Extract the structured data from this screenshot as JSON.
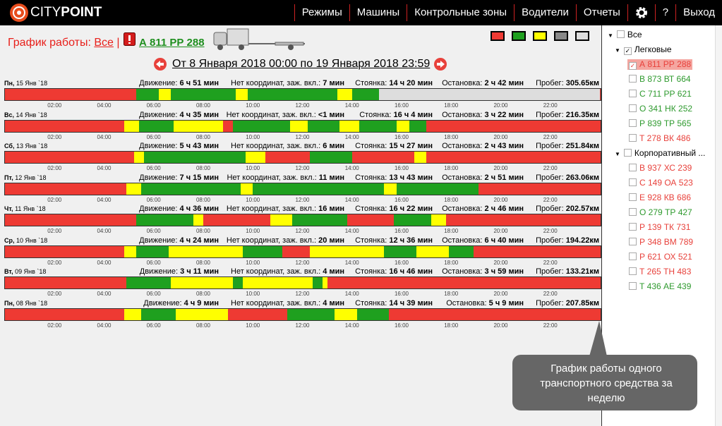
{
  "header": {
    "logo": "CITY",
    "logo_bold": "POINT",
    "menu": [
      "Режимы",
      "Машины",
      "Контрольные зоны",
      "Водители",
      "Отчеты",
      "?",
      "Выход"
    ]
  },
  "schedule": {
    "label": "График работы:",
    "filter": "Все",
    "separator": "|",
    "vehicle": "А 811 РР 288",
    "period": "От 8 Января 2018 00:00 по 19 Января 2018 23:59",
    "legend_colors": [
      "#ee3a33",
      "#1fa01f",
      "#ffff00",
      "#888888",
      "#dddddd"
    ],
    "hour_ticks": [
      {
        "value": 2,
        "label": "02:00"
      },
      {
        "value": 4,
        "label": "04:00"
      },
      {
        "value": 6,
        "label": "06:00"
      },
      {
        "value": 8,
        "label": "08:00"
      },
      {
        "value": 10,
        "label": "10:00"
      },
      {
        "value": 12,
        "label": "12:00"
      },
      {
        "value": 14,
        "label": "14:00"
      },
      {
        "value": 16,
        "label": "16:00"
      },
      {
        "value": 18,
        "label": "18:00"
      },
      {
        "value": 20,
        "label": "20:00"
      },
      {
        "value": 22,
        "label": "22:00"
      }
    ],
    "stat_labels": [
      "Движение:",
      "Нет координат, заж. вкл.:",
      "Стоянка:",
      "Остановка:",
      "Пробег:"
    ],
    "days": [
      {
        "weekday": "Пн,",
        "date": "15 Янв `18",
        "stats": [
          "6 ч 51 мин",
          "7 мин",
          "14 ч 20 мин",
          "2 ч 42 мин",
          "305.65км"
        ],
        "segments": [
          [
            0,
            0,
            5.3
          ],
          [
            1,
            5.3,
            6.2
          ],
          [
            2,
            6.2,
            6.7
          ],
          [
            1,
            6.7,
            9.3
          ],
          [
            2,
            9.3,
            9.8
          ],
          [
            1,
            9.8,
            13.4
          ],
          [
            2,
            13.4,
            14
          ],
          [
            1,
            14,
            15.1
          ],
          [
            4,
            15.1,
            24
          ]
        ]
      },
      {
        "weekday": "Вс,",
        "date": "14 Янв `18",
        "stats": [
          "4 ч 35 мин",
          "<1 мин",
          "16 ч 4 мин",
          "3 ч 22 мин",
          "216.35км"
        ],
        "segments": [
          [
            0,
            0,
            4.8
          ],
          [
            2,
            4.8,
            5.4
          ],
          [
            1,
            5.4,
            6.8
          ],
          [
            2,
            6.8,
            8.8
          ],
          [
            0,
            8.8,
            9.2
          ],
          [
            1,
            9.2,
            11.5
          ],
          [
            2,
            11.5,
            12.2
          ],
          [
            1,
            12.2,
            13.5
          ],
          [
            2,
            13.5,
            14.3
          ],
          [
            1,
            14.3,
            15.8
          ],
          [
            2,
            15.8,
            16.3
          ],
          [
            1,
            16.3,
            17
          ],
          [
            0,
            17,
            24
          ]
        ]
      },
      {
        "weekday": "Сб,",
        "date": "13 Янв `18",
        "stats": [
          "5 ч 43 мин",
          "6 мин",
          "15 ч 27 мин",
          "2 ч 43 мин",
          "251.84км"
        ],
        "segments": [
          [
            0,
            0,
            5.2
          ],
          [
            2,
            5.2,
            5.6
          ],
          [
            1,
            5.6,
            9.7
          ],
          [
            2,
            9.7,
            10.5
          ],
          [
            0,
            10.5,
            12.3
          ],
          [
            1,
            12.3,
            14
          ],
          [
            0,
            14,
            16.5
          ],
          [
            2,
            16.5,
            17
          ],
          [
            0,
            17,
            24
          ]
        ]
      },
      {
        "weekday": "Пт,",
        "date": "12 Янв `18",
        "stats": [
          "7 ч 15 мин",
          "11 мин",
          "13 ч 43 мин",
          "2 ч 51 мин",
          "263.06км"
        ],
        "segments": [
          [
            0,
            0,
            4.9
          ],
          [
            2,
            4.9,
            5.5
          ],
          [
            1,
            5.5,
            9.5
          ],
          [
            2,
            9.5,
            10
          ],
          [
            1,
            10,
            15.3
          ],
          [
            2,
            15.3,
            15.8
          ],
          [
            1,
            15.8,
            19.1
          ],
          [
            0,
            19.1,
            24
          ]
        ]
      },
      {
        "weekday": "Чт,",
        "date": "11 Янв `18",
        "stats": [
          "4 ч 36 мин",
          "16 мин",
          "16 ч 22 мин",
          "2 ч 46 мин",
          "202.57км"
        ],
        "segments": [
          [
            0,
            0,
            5.3
          ],
          [
            1,
            5.3,
            7.6
          ],
          [
            2,
            7.6,
            8
          ],
          [
            0,
            8,
            10.7
          ],
          [
            2,
            10.7,
            11.6
          ],
          [
            1,
            11.6,
            13.8
          ],
          [
            0,
            13.8,
            15.7
          ],
          [
            1,
            15.7,
            17.2
          ],
          [
            2,
            17.2,
            17.8
          ],
          [
            0,
            17.8,
            24
          ]
        ]
      },
      {
        "weekday": "Ср,",
        "date": "10 Янв `18",
        "stats": [
          "4 ч 24 мин",
          "20 мин",
          "12 ч 36 мин",
          "6 ч 40 мин",
          "194.22км"
        ],
        "segments": [
          [
            0,
            0,
            4.8
          ],
          [
            2,
            4.8,
            5.3
          ],
          [
            1,
            5.3,
            6.6
          ],
          [
            2,
            6.6,
            9.6
          ],
          [
            1,
            9.6,
            11.2
          ],
          [
            0,
            11.2,
            12.3
          ],
          [
            2,
            12.3,
            15.3
          ],
          [
            1,
            15.3,
            16.6
          ],
          [
            2,
            16.6,
            17.9
          ],
          [
            1,
            17.9,
            18.9
          ],
          [
            0,
            18.9,
            24
          ]
        ]
      },
      {
        "weekday": "Вт,",
        "date": "09 Янв `18",
        "stats": [
          "3 ч 11 мин",
          "4 мин",
          "16 ч 46 мин",
          "3 ч 59 мин",
          "133.21км"
        ],
        "segments": [
          [
            0,
            0,
            4.9
          ],
          [
            1,
            4.9,
            6.7
          ],
          [
            2,
            6.7,
            9.2
          ],
          [
            1,
            9.2,
            9.6
          ],
          [
            2,
            9.6,
            12.4
          ],
          [
            1,
            12.4,
            12.8
          ],
          [
            2,
            12.8,
            13
          ],
          [
            0,
            13,
            24
          ]
        ]
      },
      {
        "weekday": "Пн,",
        "date": "08 Янв `18",
        "stats": [
          "4 ч 9 мин",
          "4 мин",
          "14 ч 39 мин",
          "5 ч 9 мин",
          "207.85км"
        ],
        "segments": [
          [
            0,
            0,
            4.8
          ],
          [
            2,
            4.8,
            5.5
          ],
          [
            1,
            5.5,
            6.9
          ],
          [
            2,
            6.9,
            9
          ],
          [
            0,
            9,
            11.4
          ],
          [
            1,
            11.4,
            13.3
          ],
          [
            2,
            13.3,
            14.2
          ],
          [
            1,
            14.2,
            15.5
          ],
          [
            0,
            15.5,
            24
          ]
        ]
      }
    ]
  },
  "sidebar": {
    "all": "Все",
    "groups": [
      {
        "name": "Легковые",
        "checked": true,
        "vehicles": [
          {
            "plate": "А 811 РР 288",
            "color": "#e8413b",
            "selected": true
          },
          {
            "plate": "В 873 ВТ 664",
            "color": "#2e9a2e"
          },
          {
            "plate": "С 711 РР 621",
            "color": "#2e9a2e"
          },
          {
            "plate": "О 341 НК 252",
            "color": "#2e9a2e"
          },
          {
            "plate": "Р 839 ТР 565",
            "color": "#2e9a2e"
          },
          {
            "plate": "Т 278 ВК 486",
            "color": "#e8413b"
          }
        ]
      },
      {
        "name": "Корпоративный ...",
        "vehicles": [
          {
            "plate": "В 937 ХС 239",
            "color": "#e8413b"
          },
          {
            "plate": "С 149 ОА 523",
            "color": "#e8413b"
          },
          {
            "plate": "Е 928 КВ 686",
            "color": "#e8413b"
          },
          {
            "plate": "О 279 ТР 427",
            "color": "#2e9a2e"
          },
          {
            "plate": "Р 139 ТК 731",
            "color": "#e8413b"
          },
          {
            "plate": "Р 348 ВМ 789",
            "color": "#e8413b"
          },
          {
            "plate": "Р 621 ОХ 521",
            "color": "#e8413b"
          },
          {
            "plate": "Т 265 ТН 483",
            "color": "#e8413b"
          },
          {
            "plate": "Т 436 АЕ 439",
            "color": "#2e9a2e"
          }
        ]
      }
    ]
  },
  "callout": "График работы одного транспортного средства за неделю"
}
